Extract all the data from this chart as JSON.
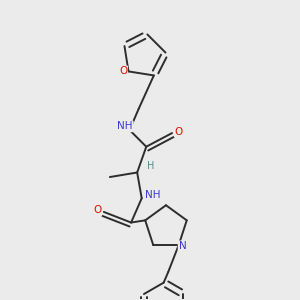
{
  "background_color": "#ebebeb",
  "bond_color": "#2d2d2d",
  "atom_colors": {
    "N": "#3a3acd",
    "O": "#dd1100",
    "C": "#2d2d2d",
    "H": "#5a8a8a"
  },
  "figsize": [
    3.0,
    3.0
  ],
  "dpi": 100
}
